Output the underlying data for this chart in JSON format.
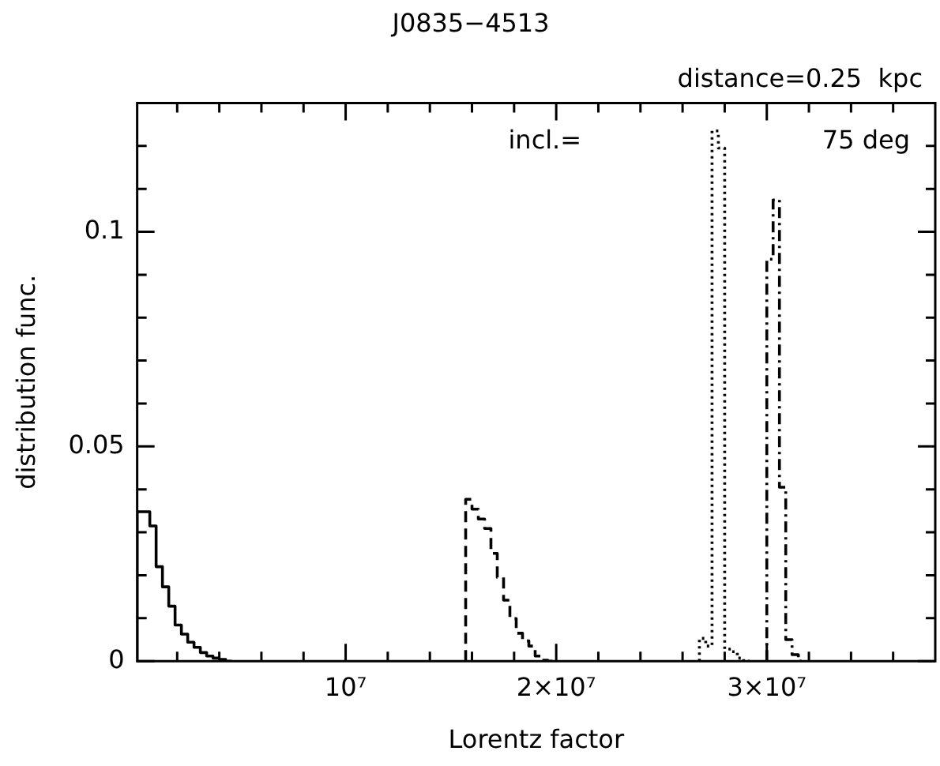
{
  "chart_data": {
    "type": "step",
    "title": "J0835−4513",
    "xlabel": "Lorentz factor",
    "ylabel": "distribution func.",
    "annotations": [
      "distance=0.25  kpc",
      "incl.=",
      "75 deg"
    ],
    "series": [
      {
        "color": "#000000",
        "line_style": "solid",
        "x": [
          100000,
          100000,
          400000,
          700000,
          1000000,
          1300000,
          1600000,
          1900000,
          2200000,
          2500000,
          2800000,
          3100000,
          3400000,
          3700000,
          4000000,
          4300000,
          4600000
        ],
        "values": [
          0,
          0.032,
          0.0348,
          0.0348,
          0.0315,
          0.022,
          0.0173,
          0.0128,
          0.0084,
          0.0063,
          0.0044,
          0.0032,
          0.002,
          0.0012,
          0.0007,
          0.0004,
          0
        ]
      },
      {
        "color": "#000000",
        "line_style": "dashed",
        "x": [
          15700000,
          15700000,
          16000000,
          16300000,
          16600000,
          16900000,
          17200000,
          17500000,
          17800000,
          18100000,
          18400000,
          18700000,
          19000000,
          19300000,
          19600000,
          19900000
        ],
        "values": [
          0,
          0.0238,
          0.0377,
          0.0354,
          0.0331,
          0.0309,
          0.0251,
          0.0195,
          0.0142,
          0.0099,
          0.0065,
          0.0047,
          0.0035,
          0.0012,
          0.0002,
          0
        ]
      },
      {
        "color": "#000000",
        "line_style": "dotted",
        "x": [
          26800000,
          26800000,
          27100000,
          27400000,
          27700000,
          28000000,
          28300000,
          28600000,
          28900000,
          29200000
        ],
        "values": [
          0,
          0.001,
          0.0053,
          0.0035,
          0.1235,
          0.1195,
          0.0028,
          0.0022,
          0.0007,
          0
        ]
      },
      {
        "color": "#000000",
        "line_style": "dashdot",
        "x": [
          30000000,
          30000000,
          30300000,
          30600000,
          30900000,
          31200000,
          31500000,
          31800000
        ],
        "values": [
          0,
          0.003,
          0.0936,
          0.1074,
          0.0405,
          0.005,
          0.0015,
          0
        ]
      }
    ],
    "xlim": [
      100000,
      38000000
    ],
    "xticks": [
      {
        "value": 2000000,
        "label": null
      },
      {
        "value": 4000000,
        "label": null
      },
      {
        "value": 6000000,
        "label": null
      },
      {
        "value": 8000000,
        "label": null
      },
      {
        "value": 10000000,
        "label": "10⁷"
      },
      {
        "value": 12000000,
        "label": null
      },
      {
        "value": 14000000,
        "label": null
      },
      {
        "value": 16000000,
        "label": null
      },
      {
        "value": 18000000,
        "label": null
      },
      {
        "value": 20000000,
        "label": "2×10⁷"
      },
      {
        "value": 22000000,
        "label": null
      },
      {
        "value": 24000000,
        "label": null
      },
      {
        "value": 26000000,
        "label": null
      },
      {
        "value": 28000000,
        "label": null
      },
      {
        "value": 30000000,
        "label": "3×10⁷"
      },
      {
        "value": 32000000,
        "label": null
      },
      {
        "value": 34000000,
        "label": null
      },
      {
        "value": 36000000,
        "label": null
      }
    ],
    "ylim": [
      0,
      0.13
    ],
    "yticks": [
      0,
      {
        "value": 0.01,
        "label": null
      },
      {
        "value": 0.02,
        "label": null
      },
      {
        "value": 0.03,
        "label": null
      },
      {
        "value": 0.04,
        "label": null
      },
      0.05,
      {
        "value": 0.06,
        "label": null
      },
      {
        "value": 0.07,
        "label": null
      },
      {
        "value": 0.08,
        "label": null
      },
      {
        "value": 0.09,
        "label": null
      },
      0.1,
      {
        "value": 0.11,
        "label": null
      },
      {
        "value": 0.12,
        "label": null
      }
    ],
    "grid": false,
    "legend": false
  }
}
